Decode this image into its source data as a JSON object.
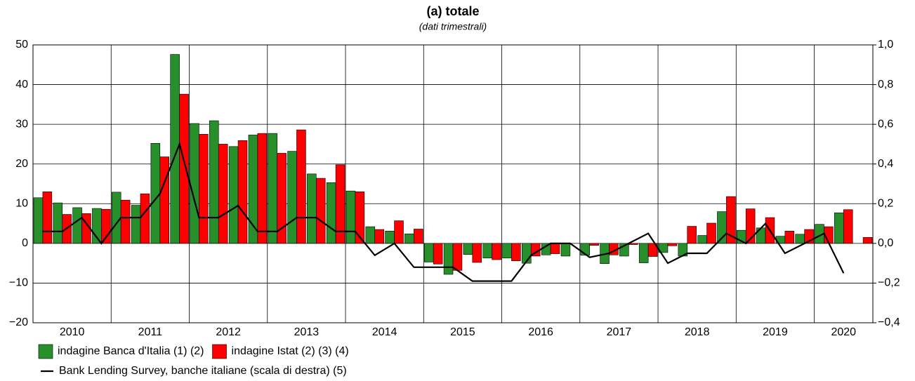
{
  "chart_data": {
    "type": "bar",
    "title": "(a) totale",
    "subtitle": "(dati trimestrali)",
    "categories": [
      "2010",
      null,
      null,
      null,
      "2011",
      null,
      null,
      null,
      "2012",
      null,
      null,
      null,
      "2013",
      null,
      null,
      null,
      "2014",
      null,
      null,
      null,
      "2015",
      null,
      null,
      null,
      "2016",
      null,
      null,
      null,
      "2017",
      null,
      null,
      null,
      "2018",
      null,
      null,
      null,
      "2019",
      null,
      null,
      null,
      "2020",
      null,
      null
    ],
    "series": [
      {
        "name": "indagine Banca d'Italia (1) (2)",
        "color": "#27902a",
        "values": [
          11.5,
          10.2,
          9,
          8.8,
          12.9,
          9.6,
          25.2,
          47.6,
          30.2,
          30.9,
          24.4,
          27.3,
          27.7,
          23.2,
          17.5,
          15.3,
          13.2,
          4.2,
          3.1,
          2.4,
          -4.7,
          -7.8,
          -2.8,
          -3.7,
          -3.7,
          -5.0,
          -2.9,
          -3.2,
          -3.0,
          -5.1,
          -3.2,
          -4.9,
          -2.3,
          -3.2,
          2.0,
          8.0,
          3.3,
          3.9,
          1.8,
          2.3,
          4.8,
          7.7,
          null
        ]
      },
      {
        "name": "indagine Istat (2) (3) (4)",
        "color": "#ff0000",
        "values": [
          13,
          7.3,
          7.5,
          8.6,
          10.9,
          12.5,
          21.8,
          37.6,
          27.5,
          25.0,
          25.9,
          27.7,
          22.7,
          28.6,
          16.4,
          19.8,
          13.0,
          3.5,
          5.7,
          3.6,
          -5.2,
          -6.8,
          -4.8,
          -4.1,
          -4.4,
          -3.2,
          -2.6,
          null,
          -0.5,
          -2.9,
          -0.3,
          -3.3,
          -0.6,
          4.3,
          5.1,
          11.8,
          8.7,
          6.5,
          3.1,
          3.5,
          4.2,
          8.5,
          1.5
        ]
      },
      {
        "name": "Bank Lending Survey, banche italiane (scala di destra) (5)",
        "color": "#000000",
        "type": "line",
        "axis": "y2",
        "values": [
          0.06,
          0.06,
          0.13,
          0.0,
          0.13,
          0.13,
          0.25,
          0.5,
          0.13,
          0.13,
          0.19,
          0.06,
          0.06,
          0.13,
          0.13,
          0.06,
          0.06,
          -0.06,
          0.0,
          -0.12,
          -0.12,
          -0.12,
          -0.19,
          -0.19,
          -0.19,
          -0.06,
          0.0,
          0.0,
          -0.07,
          -0.05,
          0.0,
          0.05,
          -0.1,
          -0.05,
          -0.05,
          0.05,
          0.0,
          0.1,
          -0.05,
          0.0,
          0.05,
          -0.15,
          null
        ]
      }
    ],
    "ylim": [
      -20,
      50
    ],
    "yticks": [
      {
        "value": -20,
        "label": "−20"
      },
      {
        "value": -10,
        "label": "−10"
      },
      0,
      10,
      20,
      30,
      40,
      50
    ],
    "y2lim": [
      -0.4,
      1.0
    ],
    "y2ticks": [
      {
        "value": -0.4,
        "label": "−0,4"
      },
      {
        "value": -0.2,
        "label": "−0,2"
      },
      {
        "value": 0,
        "label": "0,0"
      },
      {
        "value": 0.2,
        "label": "0,2"
      },
      {
        "value": 0.4,
        "label": "0,4"
      },
      {
        "value": 0.6,
        "label": "0,6"
      },
      {
        "value": 0.8,
        "label": "0,8"
      },
      {
        "value": 1.0,
        "label": "1,0"
      }
    ],
    "grid": true
  }
}
